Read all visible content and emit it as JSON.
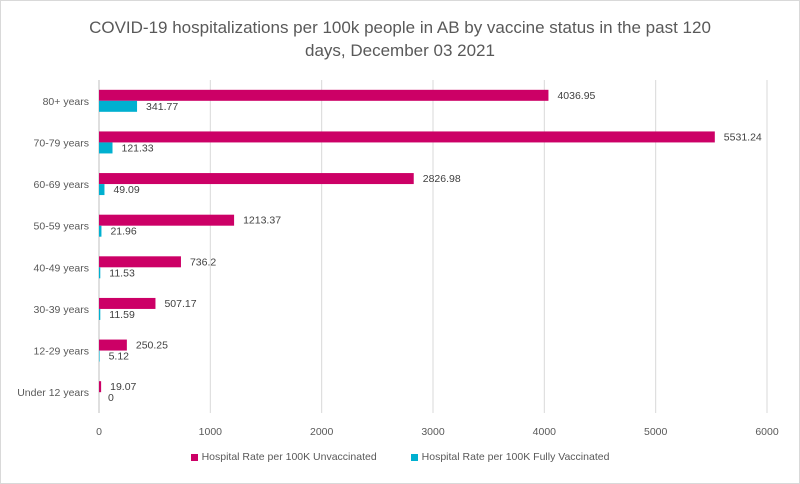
{
  "chart_data": {
    "type": "bar",
    "orientation": "horizontal",
    "title_lines": [
      "COVID-19 hospitalizations per 100k people in AB by vaccine status in the past 120",
      "days, December 03 2021"
    ],
    "categories": [
      "80+ years",
      "70-79 years",
      "60-69 years",
      "50-59 years",
      "40-49 years",
      "30-39 years",
      "12-29 years",
      "Under 12 years"
    ],
    "series": [
      {
        "name": "Hospital Rate per 100K Unvaccinated",
        "color": "#cc0066",
        "values": [
          4036.95,
          5531.24,
          2826.98,
          1213.37,
          736.2,
          507.17,
          250.25,
          19.07
        ],
        "labels": [
          "4036.95",
          "5531.24",
          "2826.98",
          "1213.37",
          "736.2",
          "507.17",
          "250.25",
          "19.07"
        ]
      },
      {
        "name": "Hospital Rate per 100K Fully Vaccinated",
        "color": "#00b0d0",
        "values": [
          341.77,
          121.33,
          49.09,
          21.96,
          11.53,
          11.59,
          5.12,
          0
        ],
        "labels": [
          "341.77",
          "121.33",
          "49.09",
          "21.96",
          "11.53",
          "11.59",
          "5.12",
          "0"
        ]
      }
    ],
    "xlim": [
      0,
      6000
    ],
    "xticks": [
      "0",
      "1000",
      "2000",
      "3000",
      "4000",
      "5000",
      "6000"
    ],
    "grid": true,
    "legend_position": "bottom"
  }
}
